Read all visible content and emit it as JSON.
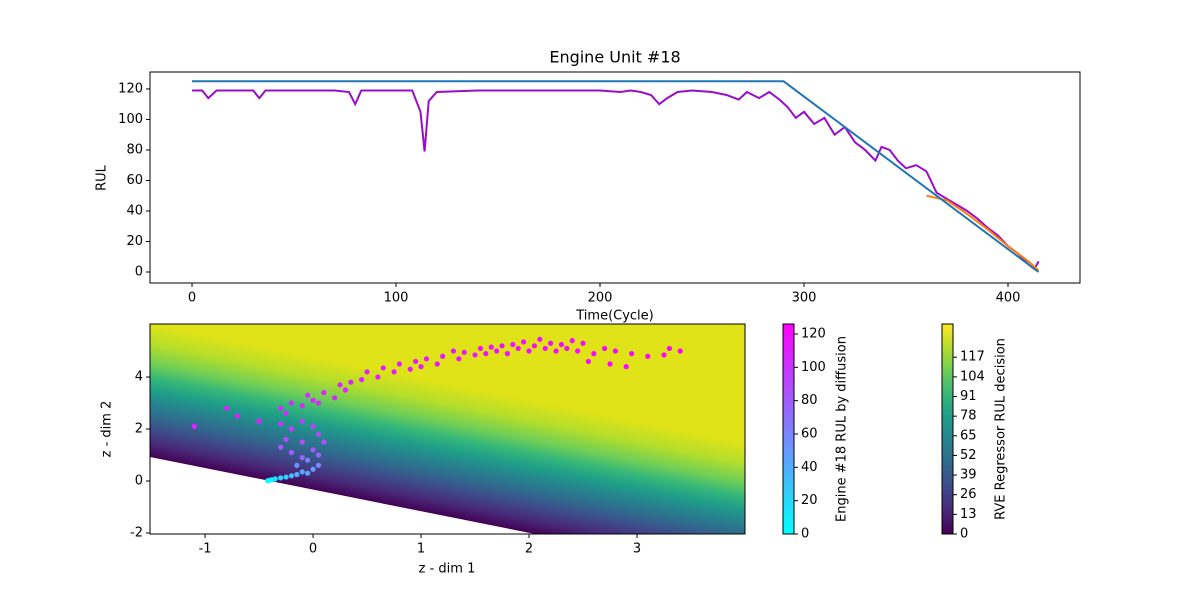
{
  "chart_data": [
    {
      "type": "line",
      "title": "Engine Unit #18",
      "xlabel": "Time(Cycle)",
      "ylabel": "RUL",
      "xlim": [
        -20.6,
        435.3
      ],
      "xticks": [
        0,
        100,
        200,
        300,
        400
      ],
      "ylim": [
        -7.2,
        131.1
      ],
      "yticks": [
        0,
        20,
        40,
        60,
        80,
        100,
        120
      ],
      "series": [
        {
          "color": "#9a0dc8",
          "x": [
            0,
            5,
            8,
            12,
            20,
            30,
            33,
            36,
            50,
            70,
            77,
            80,
            83,
            100,
            108,
            112,
            114,
            116,
            120,
            140,
            160,
            180,
            200,
            210,
            215,
            220,
            225,
            229,
            233,
            238,
            245,
            255,
            262,
            268,
            272,
            278,
            283,
            288,
            292,
            296,
            300,
            305,
            310,
            315,
            320,
            325,
            330,
            335,
            338,
            342,
            346,
            350,
            355,
            360,
            365,
            370,
            375,
            380,
            385,
            390,
            395,
            400,
            405,
            410,
            413,
            415
          ],
          "values": [
            119,
            119,
            114,
            119,
            119,
            119,
            114,
            119,
            119,
            119,
            118,
            110,
            119,
            119,
            119,
            105,
            79,
            112,
            118,
            119,
            119,
            119,
            119,
            118,
            119,
            118,
            116,
            110,
            114,
            118,
            119,
            118,
            116,
            113,
            118,
            114,
            118,
            113,
            108,
            101,
            105,
            97,
            101,
            90,
            95,
            85,
            80,
            73,
            82,
            80,
            73,
            68,
            70,
            66,
            52,
            48,
            44,
            40,
            35,
            29,
            24,
            17,
            12,
            5,
            2,
            7
          ]
        },
        {
          "color": "#ff7f0e",
          "x": [
            360,
            370,
            380,
            390,
            400,
            410,
            415
          ],
          "values": [
            50,
            47,
            38,
            28,
            17,
            7,
            1
          ]
        },
        {
          "color": "#1f77b4",
          "x": [
            0,
            290,
            415
          ],
          "values": [
            125,
            125,
            0
          ]
        }
      ]
    },
    {
      "type": "scatter",
      "xlabel": "z - dim 1",
      "ylabel": "z - dim 2",
      "xlim": [
        -1.51,
        4.0
      ],
      "xticks": [
        -1,
        0,
        1,
        2,
        3
      ],
      "ylim": [
        -2.04,
        6.04
      ],
      "yticks": [
        -2,
        0,
        2,
        4
      ],
      "x": [
        3.4,
        3.25,
        3.3,
        3.1,
        2.95,
        2.9,
        2.8,
        2.75,
        2.7,
        2.6,
        2.55,
        2.5,
        2.45,
        2.4,
        2.35,
        2.3,
        2.25,
        2.2,
        2.15,
        2.1,
        2.05,
        2.0,
        1.95,
        1.9,
        1.85,
        1.8,
        1.75,
        1.7,
        1.65,
        1.6,
        1.55,
        1.5,
        1.4,
        1.35,
        1.3,
        1.2,
        1.15,
        1.05,
        1.0,
        0.95,
        0.9,
        0.8,
        0.75,
        0.65,
        0.6,
        0.5,
        0.45,
        0.35,
        0.3,
        0.25,
        0.2,
        0.1,
        0.05,
        0.0,
        -0.05,
        -0.1,
        -0.2,
        -0.25,
        -0.3,
        -0.7,
        -0.8,
        -1.1,
        -0.5,
        -0.3,
        -0.2,
        -0.1,
        0,
        0.05,
        -0.25,
        -0.1,
        0.1,
        -0.3,
        0,
        -0.2,
        0.05,
        -0.1,
        -0.05,
        0.05,
        -0.15,
        0,
        -0.1,
        -0.05,
        -0.15,
        -0.2,
        -0.25,
        -0.3,
        -0.35,
        -0.38,
        -0.4,
        -0.42
      ],
      "y": [
        5.0,
        4.85,
        5.1,
        4.8,
        4.9,
        4.4,
        5.0,
        4.5,
        5.1,
        4.9,
        4.6,
        5.3,
        5.0,
        5.4,
        5.1,
        5.25,
        5.0,
        5.3,
        5.1,
        5.45,
        5.2,
        5.0,
        5.35,
        5.1,
        5.25,
        4.9,
        5.2,
        5.0,
        5.15,
        4.9,
        5.1,
        4.85,
        4.95,
        4.7,
        5.0,
        4.8,
        4.5,
        4.7,
        4.4,
        4.6,
        4.3,
        4.5,
        4.2,
        4.35,
        4.0,
        4.2,
        3.9,
        3.8,
        3.5,
        3.7,
        3.2,
        3.4,
        3.0,
        3.1,
        3.3,
        2.9,
        3.0,
        2.6,
        2.8,
        2.5,
        2.8,
        2.1,
        2.3,
        2.2,
        2.0,
        2.3,
        2.1,
        1.8,
        1.6,
        1.5,
        1.5,
        1.3,
        1.2,
        1.1,
        1.0,
        0.9,
        0.8,
        0.6,
        0.6,
        0.45,
        0.35,
        0.3,
        0.25,
        0.2,
        0.15,
        0.12,
        0.08,
        0.05,
        0.03,
        0.01
      ],
      "values": [
        124,
        124,
        123,
        123,
        123,
        122,
        122,
        122,
        122,
        121,
        121,
        121,
        121,
        120,
        120,
        120,
        120,
        119,
        119,
        119,
        119,
        118,
        118,
        118,
        118,
        117,
        117,
        117,
        117,
        116,
        116,
        116,
        115,
        115,
        115,
        114,
        114,
        113,
        113,
        113,
        112,
        112,
        111,
        111,
        110,
        110,
        109,
        109,
        108,
        108,
        107,
        107,
        106,
        106,
        105,
        105,
        104,
        104,
        103,
        110,
        110,
        110,
        110,
        100,
        98,
        96,
        94,
        92,
        90,
        88,
        86,
        84,
        82,
        80,
        78,
        76,
        62,
        58,
        54,
        50,
        46,
        42,
        38,
        34,
        25,
        20,
        15,
        10,
        5,
        0
      ],
      "colorbars": [
        {
          "label": "Engine #18 RUL by diffusion",
          "colormap": "cool",
          "lim": [
            0,
            126
          ],
          "ticks": [
            0,
            20,
            40,
            60,
            80,
            100,
            120
          ]
        },
        {
          "label": "RVE Regressor RUL decision",
          "colormap": "viridis",
          "lim": [
            0,
            139
          ],
          "ticks": [
            0,
            13,
            26,
            39,
            52,
            65,
            78,
            91,
            104,
            117
          ]
        }
      ]
    }
  ]
}
